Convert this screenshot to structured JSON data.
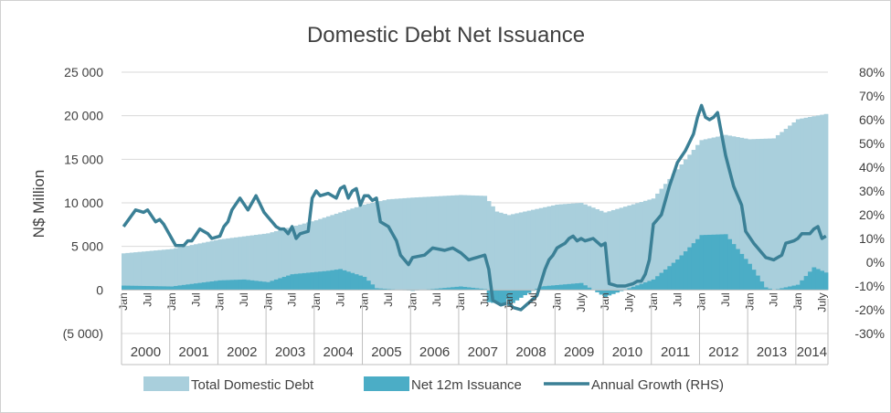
{
  "chart_data": {
    "type": "bar",
    "title": "Domestic Debt Net Issuance",
    "ylabel": "N$ Million",
    "ylim": [
      -5000,
      25000
    ],
    "y_ticks": [
      "(5 000)",
      "0",
      "5 000",
      "10 000",
      "15 000",
      "20 000",
      "25 000"
    ],
    "y_tick_values": [
      -5000,
      0,
      5000,
      10000,
      15000,
      20000,
      25000
    ],
    "y2lim": [
      -0.3,
      0.8
    ],
    "y2_ticks": [
      "-30%",
      "-20%",
      "-10%",
      "0%",
      "10%",
      "20%",
      "30%",
      "40%",
      "50%",
      "60%",
      "70%",
      "80%"
    ],
    "y2_tick_values": [
      -0.3,
      -0.2,
      -0.1,
      0.0,
      0.1,
      0.2,
      0.3,
      0.4,
      0.5,
      0.6,
      0.7,
      0.8
    ],
    "x_labels": [
      {
        "i": 0,
        "label": "Jan"
      },
      {
        "i": 6,
        "label": "Jul"
      },
      {
        "i": 12,
        "label": "Jan"
      },
      {
        "i": 18,
        "label": "Jul"
      },
      {
        "i": 24,
        "label": "Jan"
      },
      {
        "i": 30,
        "label": "Jul"
      },
      {
        "i": 36,
        "label": "Jan"
      },
      {
        "i": 42,
        "label": "Jul"
      },
      {
        "i": 48,
        "label": "Jan"
      },
      {
        "i": 54,
        "label": "Jul"
      },
      {
        "i": 60,
        "label": "Jan"
      },
      {
        "i": 66,
        "label": "Jul"
      },
      {
        "i": 72,
        "label": "Jan"
      },
      {
        "i": 78,
        "label": "Jul"
      },
      {
        "i": 84,
        "label": "Jan"
      },
      {
        "i": 90,
        "label": "Jul"
      },
      {
        "i": 96,
        "label": "Jan"
      },
      {
        "i": 102,
        "label": "Jul"
      },
      {
        "i": 108,
        "label": "Jan"
      },
      {
        "i": 114,
        "label": "July"
      },
      {
        "i": 120,
        "label": "Jan"
      },
      {
        "i": 126,
        "label": "July"
      },
      {
        "i": 132,
        "label": "Jan"
      },
      {
        "i": 138,
        "label": "Jul"
      },
      {
        "i": 144,
        "label": "Jan"
      },
      {
        "i": 150,
        "label": "Jul"
      },
      {
        "i": 156,
        "label": "Jan"
      },
      {
        "i": 162,
        "label": "Jul"
      },
      {
        "i": 168,
        "label": "Jan"
      },
      {
        "i": 174,
        "label": "July"
      }
    ],
    "years": [
      "2000",
      "2001",
      "2002",
      "2003",
      "2004",
      "2005",
      "2006",
      "2007",
      "2008",
      "2009",
      "2010",
      "2011",
      "2012",
      "2013",
      "2014"
    ],
    "months": 176,
    "series": [
      {
        "name": "Total Domestic Debt",
        "kind": "bar",
        "axis": "left",
        "color": "#a9cfdc",
        "knots": [
          [
            0,
            4200
          ],
          [
            12,
            4700
          ],
          [
            24,
            5800
          ],
          [
            36,
            6500
          ],
          [
            48,
            8000
          ],
          [
            60,
            9800
          ],
          [
            66,
            10400
          ],
          [
            72,
            10600
          ],
          [
            84,
            10900
          ],
          [
            90,
            10800
          ],
          [
            93,
            9000
          ],
          [
            96,
            8600
          ],
          [
            108,
            9800
          ],
          [
            114,
            10000
          ],
          [
            120,
            8900
          ],
          [
            132,
            10500
          ],
          [
            144,
            17200
          ],
          [
            150,
            17800
          ],
          [
            156,
            17300
          ],
          [
            162,
            17400
          ],
          [
            168,
            19600
          ],
          [
            175,
            20200
          ]
        ]
      },
      {
        "name": "Net 12m Issuance",
        "kind": "bar",
        "axis": "left",
        "color": "#4badc6",
        "knots": [
          [
            0,
            500
          ],
          [
            12,
            400
          ],
          [
            24,
            1100
          ],
          [
            30,
            1200
          ],
          [
            36,
            900
          ],
          [
            42,
            1800
          ],
          [
            51,
            2200
          ],
          [
            54,
            2400
          ],
          [
            60,
            1500
          ],
          [
            63,
            200
          ],
          [
            72,
            -100
          ],
          [
            84,
            400
          ],
          [
            90,
            100
          ],
          [
            91,
            -1400
          ],
          [
            96,
            -1800
          ],
          [
            100,
            -600
          ],
          [
            104,
            400
          ],
          [
            114,
            800
          ],
          [
            120,
            -800
          ],
          [
            132,
            1200
          ],
          [
            138,
            3500
          ],
          [
            144,
            6300
          ],
          [
            150,
            6400
          ],
          [
            156,
            3000
          ],
          [
            160,
            300
          ],
          [
            162,
            0
          ],
          [
            168,
            600
          ],
          [
            172,
            2600
          ],
          [
            175,
            2000
          ]
        ]
      },
      {
        "name": "Annual Growth (RHS)",
        "kind": "line",
        "axis": "right",
        "color": "#3b8096",
        "knots": [
          [
            0,
            0.15
          ],
          [
            3,
            0.22
          ],
          [
            5,
            0.21
          ],
          [
            6,
            0.22
          ],
          [
            8,
            0.17
          ],
          [
            9,
            0.18
          ],
          [
            10,
            0.16
          ],
          [
            12,
            0.1
          ],
          [
            13,
            0.07
          ],
          [
            15,
            0.07
          ],
          [
            16,
            0.09
          ],
          [
            17,
            0.09
          ],
          [
            19,
            0.14
          ],
          [
            21,
            0.12
          ],
          [
            22,
            0.1
          ],
          [
            24,
            0.11
          ],
          [
            25,
            0.15
          ],
          [
            26,
            0.17
          ],
          [
            27,
            0.22
          ],
          [
            29,
            0.27
          ],
          [
            31,
            0.22
          ],
          [
            33,
            0.28
          ],
          [
            35,
            0.21
          ],
          [
            36,
            0.19
          ],
          [
            37,
            0.17
          ],
          [
            38,
            0.15
          ],
          [
            39,
            0.14
          ],
          [
            40,
            0.14
          ],
          [
            41,
            0.12
          ],
          [
            42,
            0.15
          ],
          [
            43,
            0.1
          ],
          [
            44,
            0.12
          ],
          [
            46,
            0.13
          ],
          [
            47,
            0.27
          ],
          [
            48,
            0.3
          ],
          [
            49,
            0.28
          ],
          [
            51,
            0.29
          ],
          [
            53,
            0.27
          ],
          [
            54,
            0.31
          ],
          [
            55,
            0.32
          ],
          [
            56,
            0.27
          ],
          [
            57,
            0.3
          ],
          [
            58,
            0.31
          ],
          [
            59,
            0.24
          ],
          [
            60,
            0.28
          ],
          [
            61,
            0.28
          ],
          [
            62,
            0.26
          ],
          [
            63,
            0.27
          ],
          [
            64,
            0.17
          ],
          [
            66,
            0.15
          ],
          [
            68,
            0.09
          ],
          [
            69,
            0.03
          ],
          [
            71,
            -0.01
          ],
          [
            72,
            0.02
          ],
          [
            75,
            0.03
          ],
          [
            77,
            0.06
          ],
          [
            80,
            0.05
          ],
          [
            82,
            0.06
          ],
          [
            84,
            0.04
          ],
          [
            86,
            0.01
          ],
          [
            88,
            0.02
          ],
          [
            90,
            0.03
          ],
          [
            91,
            -0.03
          ],
          [
            92,
            -0.16
          ],
          [
            94,
            -0.18
          ],
          [
            96,
            -0.17
          ],
          [
            97,
            -0.19
          ],
          [
            99,
            -0.2
          ],
          [
            101,
            -0.17
          ],
          [
            103,
            -0.14
          ],
          [
            105,
            -0.03
          ],
          [
            106,
            0.01
          ],
          [
            107,
            0.03
          ],
          [
            108,
            0.06
          ],
          [
            110,
            0.08
          ],
          [
            111,
            0.1
          ],
          [
            112,
            0.11
          ],
          [
            113,
            0.09
          ],
          [
            114,
            0.1
          ],
          [
            115,
            0.09
          ],
          [
            117,
            0.1
          ],
          [
            119,
            0.07
          ],
          [
            120,
            0.08
          ],
          [
            121,
            -0.09
          ],
          [
            123,
            -0.1
          ],
          [
            125,
            -0.1
          ],
          [
            127,
            -0.09
          ],
          [
            128,
            -0.08
          ],
          [
            129,
            -0.08
          ],
          [
            130,
            -0.05
          ],
          [
            131,
            0.01
          ],
          [
            132,
            0.16
          ],
          [
            134,
            0.2
          ],
          [
            136,
            0.32
          ],
          [
            138,
            0.42
          ],
          [
            140,
            0.47
          ],
          [
            142,
            0.54
          ],
          [
            143,
            0.61
          ],
          [
            144,
            0.66
          ],
          [
            145,
            0.61
          ],
          [
            146,
            0.6
          ],
          [
            147,
            0.61
          ],
          [
            148,
            0.63
          ],
          [
            150,
            0.45
          ],
          [
            152,
            0.32
          ],
          [
            154,
            0.24
          ],
          [
            155,
            0.13
          ],
          [
            157,
            0.08
          ],
          [
            158,
            0.06
          ],
          [
            159,
            0.04
          ],
          [
            160,
            0.02
          ],
          [
            162,
            0.01
          ],
          [
            164,
            0.03
          ],
          [
            165,
            0.08
          ],
          [
            167,
            0.09
          ],
          [
            168,
            0.1
          ],
          [
            169,
            0.12
          ],
          [
            171,
            0.12
          ],
          [
            172,
            0.14
          ],
          [
            173,
            0.15
          ],
          [
            174,
            0.1
          ],
          [
            175,
            0.11
          ]
        ]
      }
    ],
    "legend": [
      {
        "label": "Total Domestic Debt",
        "color": "#a9cfdc",
        "swatch": "rect"
      },
      {
        "label": "Net 12m Issuance",
        "color": "#4badc6",
        "swatch": "rect"
      },
      {
        "label": "Annual Growth (RHS)",
        "color": "#3b8096",
        "swatch": "line"
      }
    ],
    "legend_position": "bottom",
    "grid": true,
    "grid_color": "#d9d9d9",
    "text_color": "#404040"
  }
}
